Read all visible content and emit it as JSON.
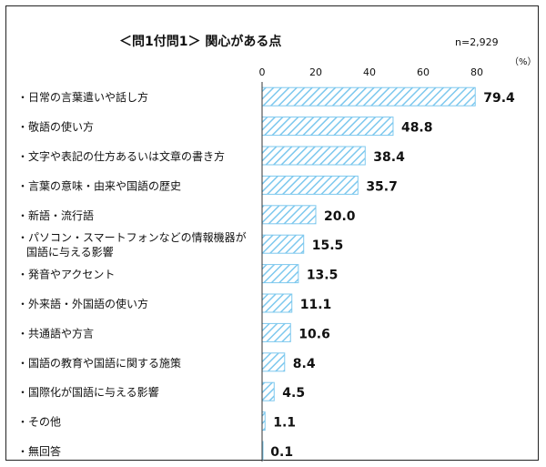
{
  "chart_data": {
    "type": "bar",
    "orientation": "horizontal",
    "title": "＜問1付問1＞ 関心がある点",
    "sample_size": "n=2,929",
    "unit": "（%）",
    "categories": [
      "・日常の言葉遣いや話し方",
      "・敬語の使い方",
      "・文字や表記の仕方あるいは文章の書き方",
      "・言葉の意味・由来や国語の歴史",
      "・新語・流行語",
      [
        "・パソコン・スマートフォンなどの情報機器が",
        "国語に与える影響"
      ],
      "・発音やアクセント",
      "・外来語・外国語の使い方",
      "・共通語や方言",
      "・国語の教育や国語に関する施策",
      "・国際化が国語に与える影響",
      "・その他",
      "・無回答"
    ],
    "values": [
      79.4,
      48.8,
      38.4,
      35.7,
      20.0,
      15.5,
      13.5,
      11.1,
      10.6,
      8.4,
      4.5,
      1.1,
      0.1
    ],
    "value_labels": [
      "79.4",
      "48.8",
      "38.4",
      "35.7",
      "20.0",
      "15.5",
      "13.5",
      "11.1",
      "10.6",
      "8.4",
      "4.5",
      "1.1",
      "0.1"
    ],
    "xticks": [
      0,
      20,
      40,
      60,
      80
    ],
    "xlim": [
      0,
      80
    ],
    "xlabel": "",
    "ylabel": "",
    "grid": false,
    "legend": "none",
    "bar_color": "#7dc8ee",
    "bar_pattern": "diagonal-hatch"
  }
}
